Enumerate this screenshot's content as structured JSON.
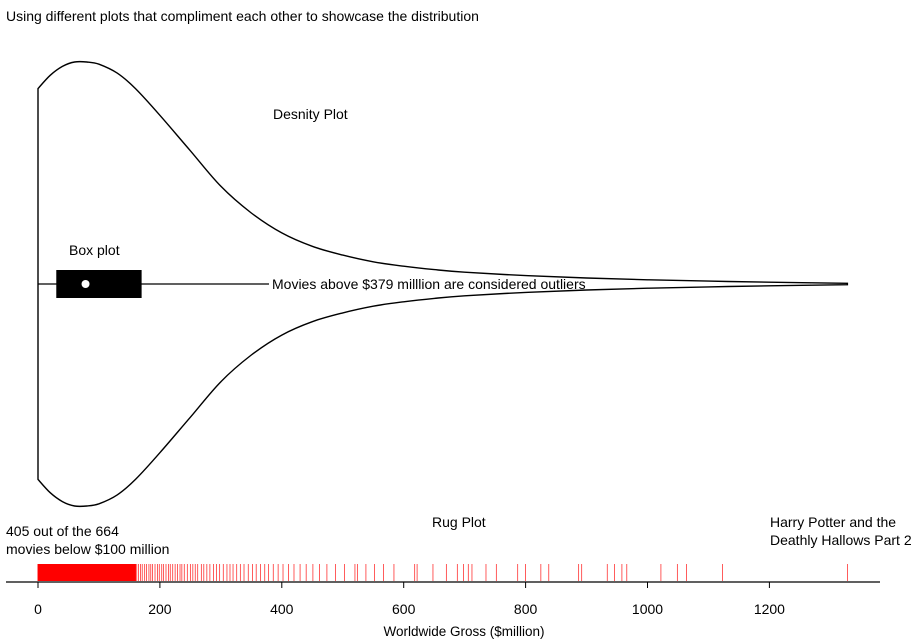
{
  "chart_data": {
    "type": "violin",
    "title": "Using different plots that compliment each other to showcase the distribution",
    "xlabel": "Worldwide Gross ($million)",
    "xlim": [
      0,
      1380
    ],
    "x_ticks": [
      0,
      200,
      400,
      600,
      800,
      1000,
      1200
    ],
    "x_tick_labels": [
      "0",
      "200",
      "400",
      "600",
      "800",
      "1000",
      "1200"
    ],
    "max_value": 1328,
    "density_curve": {
      "x": [
        0,
        20,
        40,
        60,
        80,
        100,
        130,
        160,
        200,
        250,
        300,
        350,
        400,
        450,
        500,
        550,
        600,
        650,
        700,
        800,
        900,
        1000,
        1100,
        1200,
        1328
      ],
      "half_width": [
        0.88,
        0.94,
        0.98,
        1.0,
        1.0,
        0.99,
        0.95,
        0.88,
        0.76,
        0.6,
        0.44,
        0.32,
        0.23,
        0.17,
        0.13,
        0.1,
        0.08,
        0.065,
        0.053,
        0.038,
        0.027,
        0.019,
        0.013,
        0.008,
        0.003
      ]
    },
    "box_plot": {
      "whisker_low": 0,
      "q1": 30,
      "median": 78,
      "q3": 170,
      "whisker_high": 379
    },
    "rug": {
      "dense_range": [
        0,
        160
      ],
      "values": [
        162,
        165,
        168,
        171,
        175,
        178,
        182,
        185,
        188,
        192,
        196,
        199,
        203,
        206,
        210,
        214,
        217,
        221,
        225,
        229,
        233,
        236,
        240,
        245,
        250,
        254,
        258,
        262,
        268,
        272,
        277,
        282,
        288,
        293,
        298,
        304,
        310,
        315,
        320,
        326,
        332,
        338,
        345,
        352,
        358,
        365,
        372,
        378,
        386,
        394,
        402,
        411,
        420,
        430,
        440,
        451,
        462,
        474,
        488,
        503,
        520,
        524,
        538,
        552,
        567,
        584,
        618,
        622,
        648,
        670,
        688,
        698,
        706,
        712,
        735,
        752,
        787,
        800,
        825,
        838,
        887,
        892,
        934,
        946,
        958,
        966,
        1022,
        1049,
        1064,
        1123,
        1328
      ]
    },
    "annotations": [
      {
        "text": "Desnity Plot"
      },
      {
        "text": "Box plot"
      },
      {
        "text": "Movies above $379 milllion are considered outliers"
      },
      {
        "text": "Rug Plot"
      },
      {
        "lines": [
          "405 out of the 664",
          "movies below $100 million"
        ]
      },
      {
        "lines": [
          "Harry Potter and the",
          "Deathly Hallows Part 2"
        ]
      }
    ],
    "colors": {
      "rug": "#ff0000",
      "outline": "#000000",
      "median_dot": "#ffffff"
    }
  }
}
